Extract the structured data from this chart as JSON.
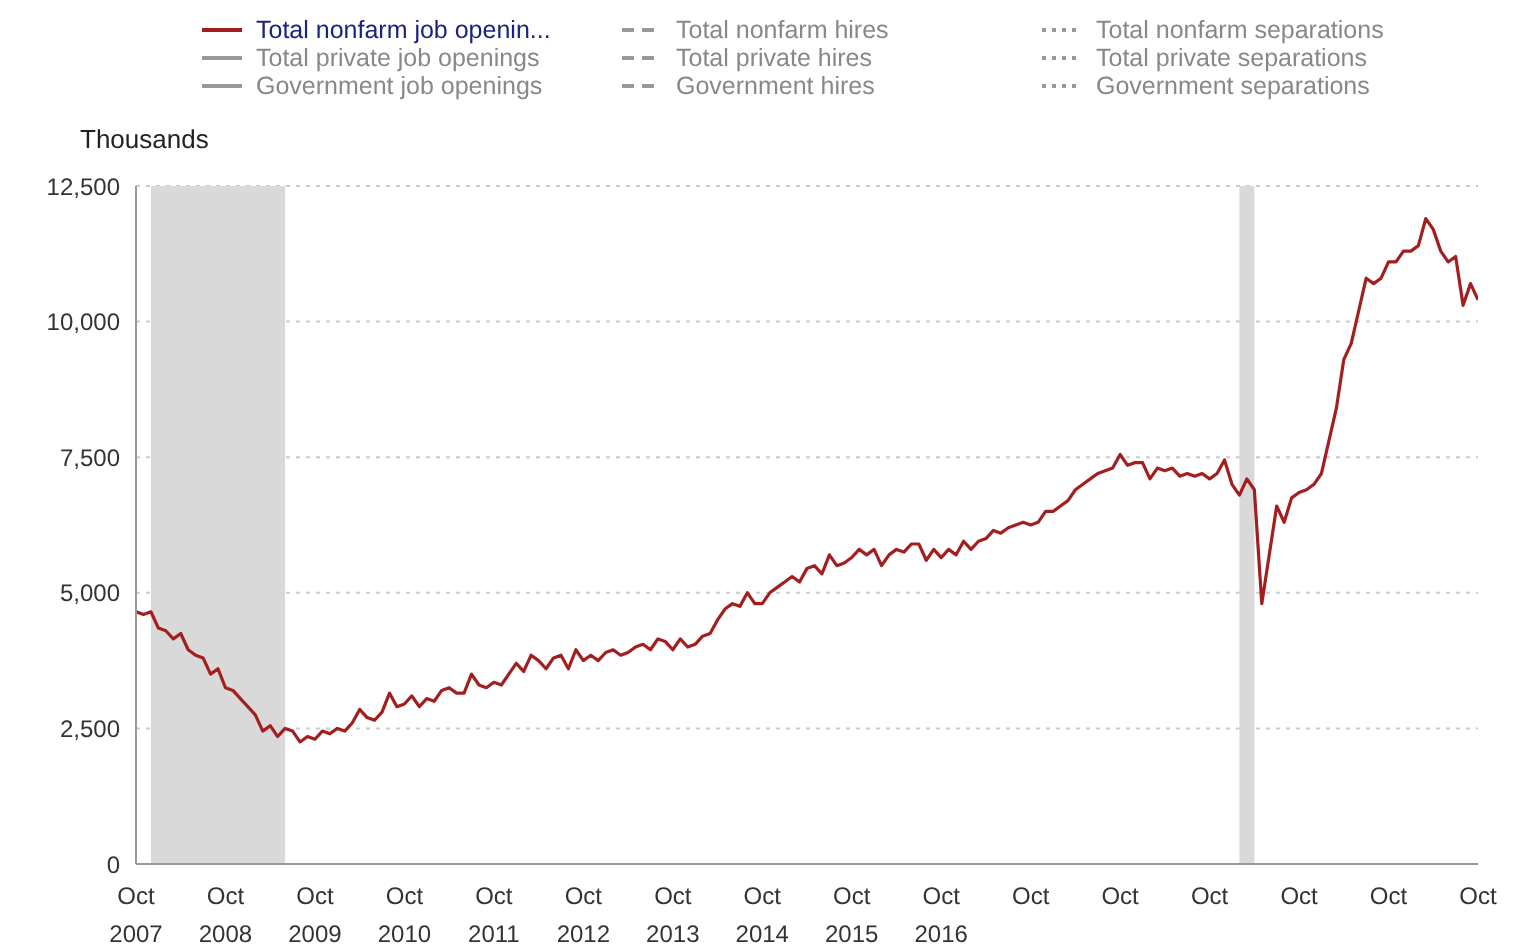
{
  "chart_data": {
    "type": "line",
    "ylabel": "Thousands",
    "legend": "top",
    "grid": "y",
    "marker": "none",
    "xlim": [
      "2007-10",
      "2022-10"
    ],
    "xticks": [
      {
        "value": "2007-10",
        "label": "Oct\n2007"
      },
      {
        "value": "2008-10",
        "label": "Oct\n2008"
      },
      {
        "value": "2009-10",
        "label": "Oct\n2009"
      },
      {
        "value": "2010-10",
        "label": "Oct\n2010"
      },
      {
        "value": "2011-10",
        "label": "Oct\n2011"
      },
      {
        "value": "2012-10",
        "label": "Oct\n2012"
      },
      {
        "value": "2013-10",
        "label": "Oct\n2013"
      },
      {
        "value": "2014-10",
        "label": "Oct\n2014"
      },
      {
        "value": "2015-10",
        "label": "Oct\n2015"
      },
      {
        "value": "2016-10",
        "label": "Oct\n2016"
      },
      {
        "value": "2017-10",
        "label": "Oct"
      },
      {
        "value": "2018-10",
        "label": "Oct"
      },
      {
        "value": "2019-10",
        "label": "Oct"
      },
      {
        "value": "2020-10",
        "label": "Oct"
      },
      {
        "value": "2021-10",
        "label": "Oct"
      },
      {
        "value": "2022-10",
        "label": "Oct"
      }
    ],
    "ylim": [
      0,
      12500
    ],
    "yticks": [
      0,
      {
        "value": 2500,
        "label": "2,500"
      },
      {
        "value": 5000,
        "label": "5,000"
      },
      {
        "value": 7500,
        "label": "7,500"
      },
      {
        "value": 10000,
        "label": "10,000"
      },
      {
        "value": 12500,
        "label": "12,500"
      }
    ],
    "bands": [
      {
        "axis": "x",
        "from": "2007-12",
        "to": "2009-06",
        "color": "#d9d9d9"
      },
      {
        "axis": "x",
        "from": "2020-02",
        "to": "2020-04",
        "color": "#d9d9d9"
      }
    ],
    "series": [
      {
        "name": "Total nonfarm job openin...",
        "color": "#a31f1f",
        "line_style": "solid",
        "x": [
          "2007-10",
          "2007-11",
          "2007-12",
          "2008-01",
          "2008-02",
          "2008-03",
          "2008-04",
          "2008-05",
          "2008-06",
          "2008-07",
          "2008-08",
          "2008-09",
          "2008-10",
          "2008-11",
          "2008-12",
          "2009-01",
          "2009-02",
          "2009-03",
          "2009-04",
          "2009-05",
          "2009-06",
          "2009-07",
          "2009-08",
          "2009-09",
          "2009-10",
          "2009-11",
          "2009-12",
          "2010-01",
          "2010-02",
          "2010-03",
          "2010-04",
          "2010-05",
          "2010-06",
          "2010-07",
          "2010-08",
          "2010-09",
          "2010-10",
          "2010-11",
          "2010-12",
          "2011-01",
          "2011-02",
          "2011-03",
          "2011-04",
          "2011-05",
          "2011-06",
          "2011-07",
          "2011-08",
          "2011-09",
          "2011-10",
          "2011-11",
          "2011-12",
          "2012-01",
          "2012-02",
          "2012-03",
          "2012-04",
          "2012-05",
          "2012-06",
          "2012-07",
          "2012-08",
          "2012-09",
          "2012-10",
          "2012-11",
          "2012-12",
          "2013-01",
          "2013-02",
          "2013-03",
          "2013-04",
          "2013-05",
          "2013-06",
          "2013-07",
          "2013-08",
          "2013-09",
          "2013-10",
          "2013-11",
          "2013-12",
          "2014-01",
          "2014-02",
          "2014-03",
          "2014-04",
          "2014-05",
          "2014-06",
          "2014-07",
          "2014-08",
          "2014-09",
          "2014-10",
          "2014-11",
          "2014-12",
          "2015-01",
          "2015-02",
          "2015-03",
          "2015-04",
          "2015-05",
          "2015-06",
          "2015-07",
          "2015-08",
          "2015-09",
          "2015-10",
          "2015-11",
          "2015-12",
          "2016-01",
          "2016-02",
          "2016-03",
          "2016-04",
          "2016-05",
          "2016-06",
          "2016-07",
          "2016-08",
          "2016-09",
          "2016-10",
          "2016-11",
          "2016-12",
          "2017-01",
          "2017-02",
          "2017-03",
          "2017-04",
          "2017-05",
          "2017-06",
          "2017-07",
          "2017-08",
          "2017-09",
          "2017-10",
          "2017-11",
          "2017-12",
          "2018-01",
          "2018-02",
          "2018-03",
          "2018-04",
          "2018-05",
          "2018-06",
          "2018-07",
          "2018-08",
          "2018-09",
          "2018-10",
          "2018-11",
          "2018-12",
          "2019-01",
          "2019-02",
          "2019-03",
          "2019-04",
          "2019-05",
          "2019-06",
          "2019-07",
          "2019-08",
          "2019-09",
          "2019-10",
          "2019-11",
          "2019-12",
          "2020-01",
          "2020-02",
          "2020-03",
          "2020-04",
          "2020-05",
          "2020-06",
          "2020-07",
          "2020-08",
          "2020-09",
          "2020-10",
          "2020-11",
          "2020-12",
          "2021-01",
          "2021-02",
          "2021-03",
          "2021-04",
          "2021-05",
          "2021-06",
          "2021-07",
          "2021-08",
          "2021-09",
          "2021-10",
          "2021-11",
          "2021-12",
          "2022-01",
          "2022-02",
          "2022-03",
          "2022-04",
          "2022-05",
          "2022-06",
          "2022-07",
          "2022-08",
          "2022-09",
          "2022-10"
        ],
        "values": [
          4650,
          4600,
          4650,
          4350,
          4300,
          4150,
          4250,
          3950,
          3850,
          3800,
          3500,
          3600,
          3250,
          3200,
          3050,
          2900,
          2750,
          2450,
          2550,
          2350,
          2500,
          2450,
          2250,
          2350,
          2300,
          2450,
          2400,
          2500,
          2450,
          2600,
          2850,
          2700,
          2650,
          2800,
          3150,
          2900,
          2950,
          3100,
          2900,
          3050,
          3000,
          3200,
          3250,
          3150,
          3150,
          3500,
          3300,
          3250,
          3350,
          3300,
          3500,
          3700,
          3550,
          3850,
          3750,
          3600,
          3800,
          3850,
          3600,
          3950,
          3750,
          3850,
          3750,
          3900,
          3950,
          3850,
          3900,
          4000,
          4050,
          3950,
          4150,
          4100,
          3950,
          4150,
          4000,
          4050,
          4200,
          4250,
          4500,
          4700,
          4800,
          4750,
          5000,
          4800,
          4800,
          5000,
          5100,
          5200,
          5300,
          5200,
          5450,
          5500,
          5350,
          5700,
          5500,
          5550,
          5650,
          5800,
          5700,
          5800,
          5500,
          5700,
          5800,
          5750,
          5900,
          5900,
          5600,
          5800,
          5650,
          5800,
          5700,
          5950,
          5800,
          5950,
          6000,
          6150,
          6100,
          6200,
          6250,
          6300,
          6250,
          6300,
          6500,
          6500,
          6600,
          6700,
          6900,
          7000,
          7100,
          7200,
          7250,
          7300,
          7550,
          7350,
          7400,
          7400,
          7100,
          7300,
          7250,
          7300,
          7150,
          7200,
          7150,
          7200,
          7100,
          7200,
          7450,
          7000,
          6800,
          7100,
          6900,
          4800,
          5700,
          6600,
          6300,
          6750,
          6850,
          6900,
          7000,
          7200,
          7800,
          8400,
          9300,
          9600,
          10200,
          10800,
          10700,
          10800,
          11100,
          11100,
          11300,
          11300,
          11400,
          11900,
          11700,
          11300,
          11100,
          11200,
          10300,
          10700,
          10400
        ]
      },
      {
        "name": "Total private job openings",
        "color": "#999999",
        "line_style": "solid"
      },
      {
        "name": "Government job openings",
        "color": "#999999",
        "line_style": "solid"
      },
      {
        "name": "Total nonfarm hires",
        "color": "#999999",
        "line_style": "dashed"
      },
      {
        "name": "Total private hires",
        "color": "#999999",
        "line_style": "dashed"
      },
      {
        "name": "Government hires",
        "color": "#999999",
        "line_style": "dashed"
      },
      {
        "name": "Total nonfarm separations",
        "color": "#999999",
        "line_style": "dotted"
      },
      {
        "name": "Total private separations",
        "color": "#999999",
        "line_style": "dotted"
      },
      {
        "name": "Government separations",
        "color": "#999999",
        "line_style": "dotted"
      }
    ]
  }
}
